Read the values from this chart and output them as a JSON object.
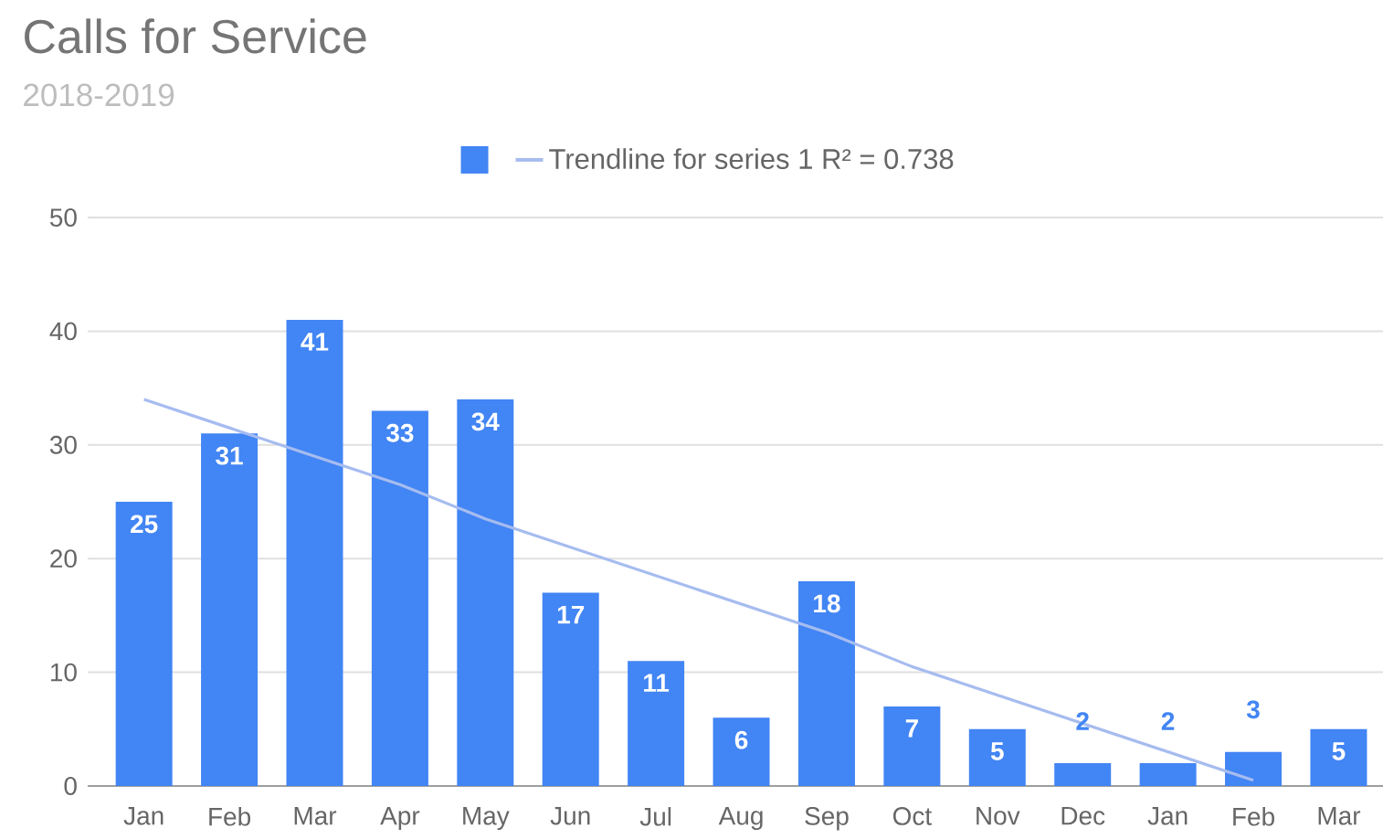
{
  "chart_data": {
    "type": "bar",
    "title": "Calls for Service",
    "subtitle": "2018-2019",
    "categories": [
      "Jan",
      "Feb",
      "Mar",
      "Apr",
      "May",
      "Jun",
      "Jul",
      "Aug",
      "Sep",
      "Oct",
      "Nov",
      "Dec",
      "Jan",
      "Feb",
      "Mar"
    ],
    "series": [
      {
        "color": "#4285f4",
        "values": [
          25,
          31,
          41,
          33,
          34,
          17,
          11,
          6,
          18,
          7,
          5,
          2,
          2,
          3,
          5
        ],
        "value_labels": [
          "25",
          "31",
          "41",
          "33",
          "34",
          "17",
          "11",
          "6",
          "18",
          "7",
          "5",
          "2",
          "2",
          "3",
          "5"
        ]
      },
      {
        "name": "Trendline for series 1 R² = 0.738",
        "type": "line",
        "color": "#a6bcf0",
        "values": [
          34,
          31.5,
          29,
          26.5,
          23.5,
          21,
          18.5,
          16,
          13.5,
          10.5,
          8,
          5.5,
          3,
          0.5,
          null
        ]
      }
    ],
    "ylim": [
      0,
      50
    ],
    "yticks": [
      0,
      10,
      20,
      30,
      40,
      50
    ],
    "grid": "y",
    "legend": "top"
  }
}
